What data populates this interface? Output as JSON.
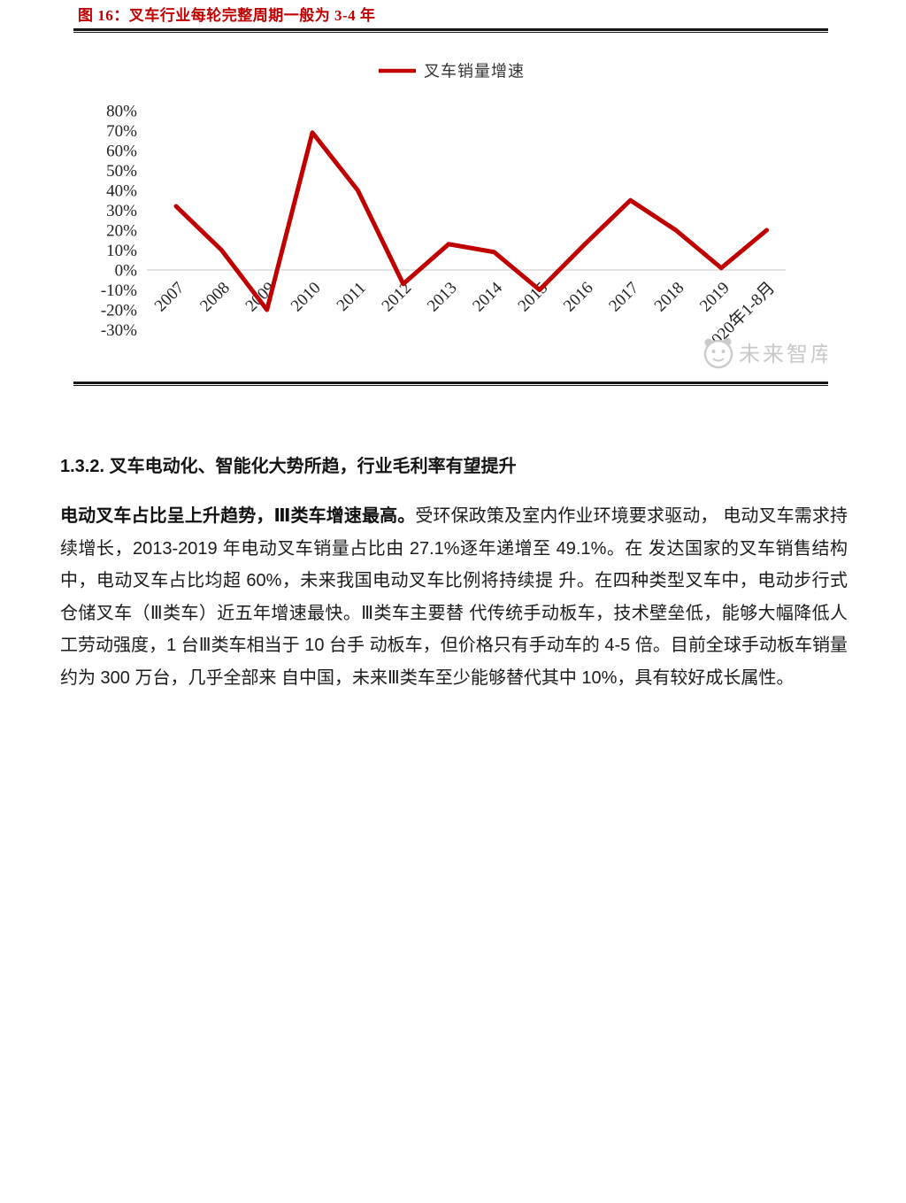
{
  "figure": {
    "title": "图 16：叉车行业每轮完整周期一般为 3-4 年",
    "watermark": "未来智库"
  },
  "chart_data": {
    "type": "line",
    "title": "",
    "legend_position": "top-center",
    "categories": [
      "2007",
      "2008",
      "2009",
      "2010",
      "2011",
      "2012",
      "2013",
      "2014",
      "2015",
      "2016",
      "2017",
      "2018",
      "2019",
      "2020年1-8月"
    ],
    "series": [
      {
        "name": "叉车销量增速",
        "values": [
          32,
          10,
          -20,
          69,
          40,
          -7,
          13,
          9,
          -10,
          13,
          35,
          20,
          1,
          20
        ]
      }
    ],
    "unit": "%",
    "ylim": [
      -30,
      80
    ],
    "yticks": [
      80,
      70,
      60,
      50,
      40,
      30,
      20,
      10,
      0,
      -10,
      -20,
      -30
    ],
    "grid": "zero-line-only",
    "line_color": "#c00000",
    "gridline_color": "#d9d9d9"
  },
  "section": {
    "heading": "1.3.2. 叉车电动化、智能化大势所趋，行业毛利率有望提升",
    "paragraph_lead": "电动叉车占比呈上升趋势，Ⅲ类车增速最高。",
    "paragraph_body": "受环保政策及室内作业环境要求驱动， 电动叉车需求持续增长，2013-2019 年电动叉车销量占比由 27.1%逐年递增至 49.1%。在 发达国家的叉车销售结构中，电动叉车占比均超 60%，未来我国电动叉车比例将持续提 升。在四种类型叉车中，电动步行式仓储叉车（Ⅲ类车）近五年增速最快。Ⅲ类车主要替 代传统手动板车，技术壁垒低，能够大幅降低人工劳动强度，1 台Ⅲ类车相当于 10 台手 动板车，但价格只有手动车的 4-5 倍。目前全球手动板车销量约为 300 万台，几乎全部来 自中国，未来Ⅲ类车至少能够替代其中 10%，具有较好成长属性。"
  }
}
